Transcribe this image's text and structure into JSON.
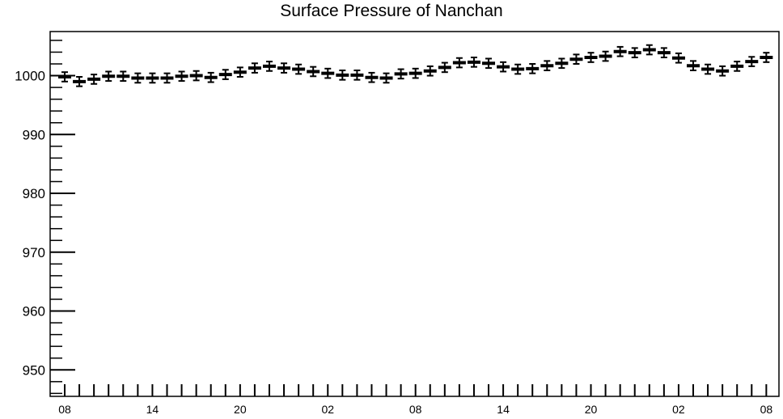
{
  "chart_data": {
    "type": "scatter",
    "title": "Surface Pressure of Nanchan",
    "xlabel": "",
    "ylabel": "",
    "ylim": [
      945.5,
      1007.5
    ],
    "y_ticks": [
      950,
      960,
      970,
      980,
      990,
      1000
    ],
    "x_tick_labels": [
      "08",
      "14",
      "20",
      "02",
      "08",
      "14",
      "20",
      "02",
      "08"
    ],
    "x_tick_label_indices": [
      0,
      6,
      12,
      18,
      24,
      30,
      36,
      42,
      48
    ],
    "grid": false,
    "marker_color": "#000000",
    "series": [
      {
        "values": [
          999.8,
          999.0,
          999.4,
          999.9,
          999.9,
          999.6,
          999.6,
          999.6,
          999.9,
          1000.0,
          999.7,
          1000.2,
          1000.6,
          1001.3,
          1001.6,
          1001.3,
          1001.1,
          1000.7,
          1000.4,
          1000.1,
          1000.1,
          999.7,
          999.6,
          1000.3,
          1000.4,
          1000.8,
          1001.4,
          1002.2,
          1002.3,
          1002.1,
          1001.5,
          1001.1,
          1001.2,
          1001.7,
          1002.1,
          1002.8,
          1003.1,
          1003.3,
          1004.1,
          1003.9,
          1004.4,
          1003.9,
          1003.0,
          1001.7,
          1001.1,
          1000.8,
          1001.6,
          1002.4,
          1003.1
        ],
        "error": 0.8
      }
    ]
  }
}
